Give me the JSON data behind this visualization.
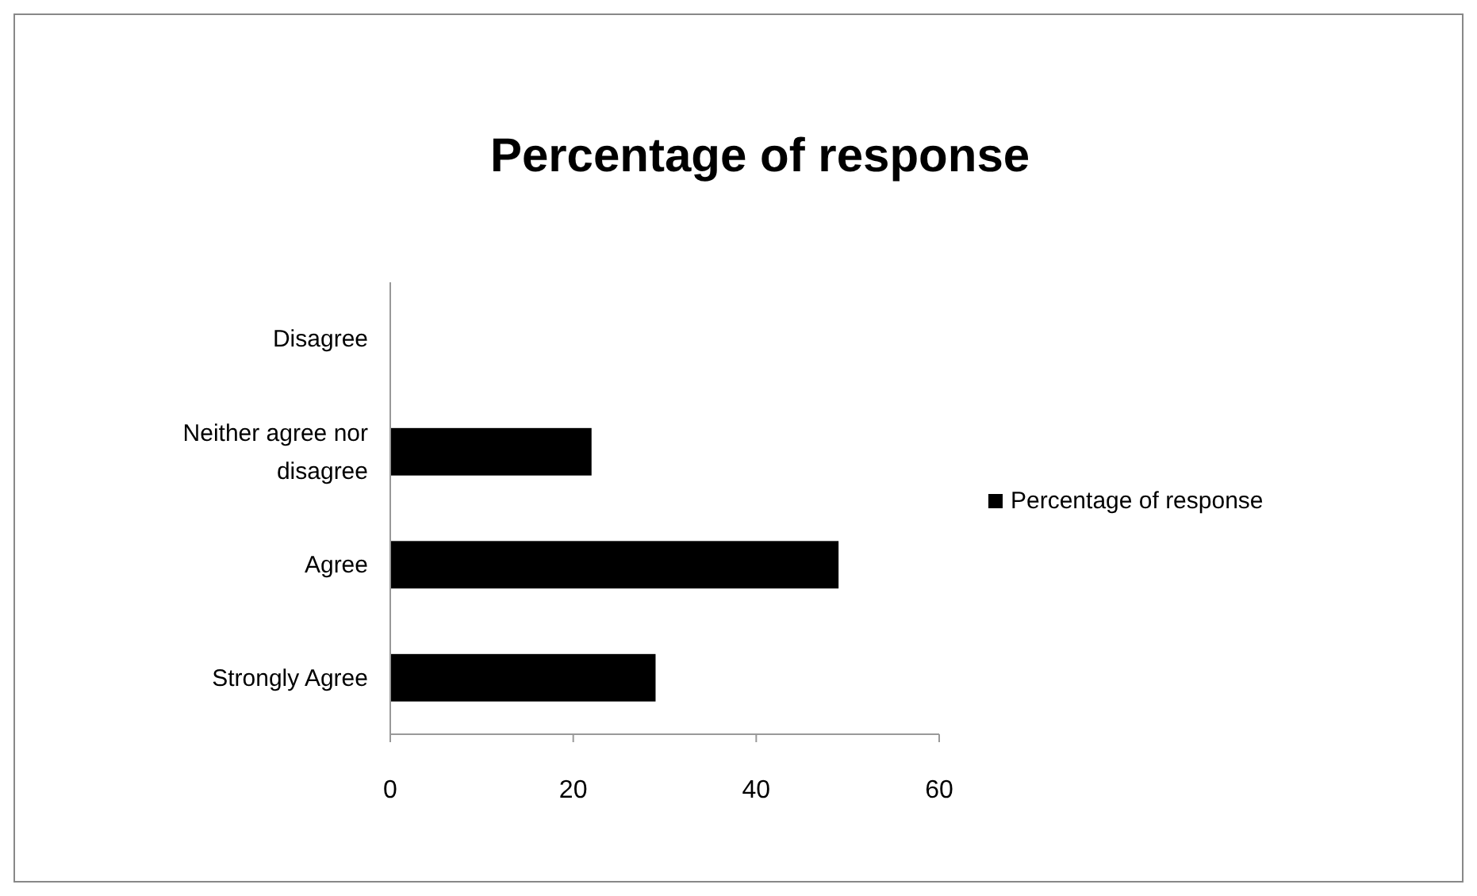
{
  "chart_data": {
    "type": "bar",
    "orientation": "horizontal",
    "title": "Percentage of response",
    "categories": [
      "Disagree",
      "Neither agree nor disagree",
      "Agree",
      "Strongly Agree"
    ],
    "series": [
      {
        "name": "Percentage of response",
        "color": "#000000",
        "values": [
          0,
          22,
          49,
          29
        ]
      }
    ],
    "xlim": [
      0,
      60
    ],
    "xticks": [
      0,
      20,
      40,
      60
    ],
    "grid": false,
    "legend": "right"
  }
}
